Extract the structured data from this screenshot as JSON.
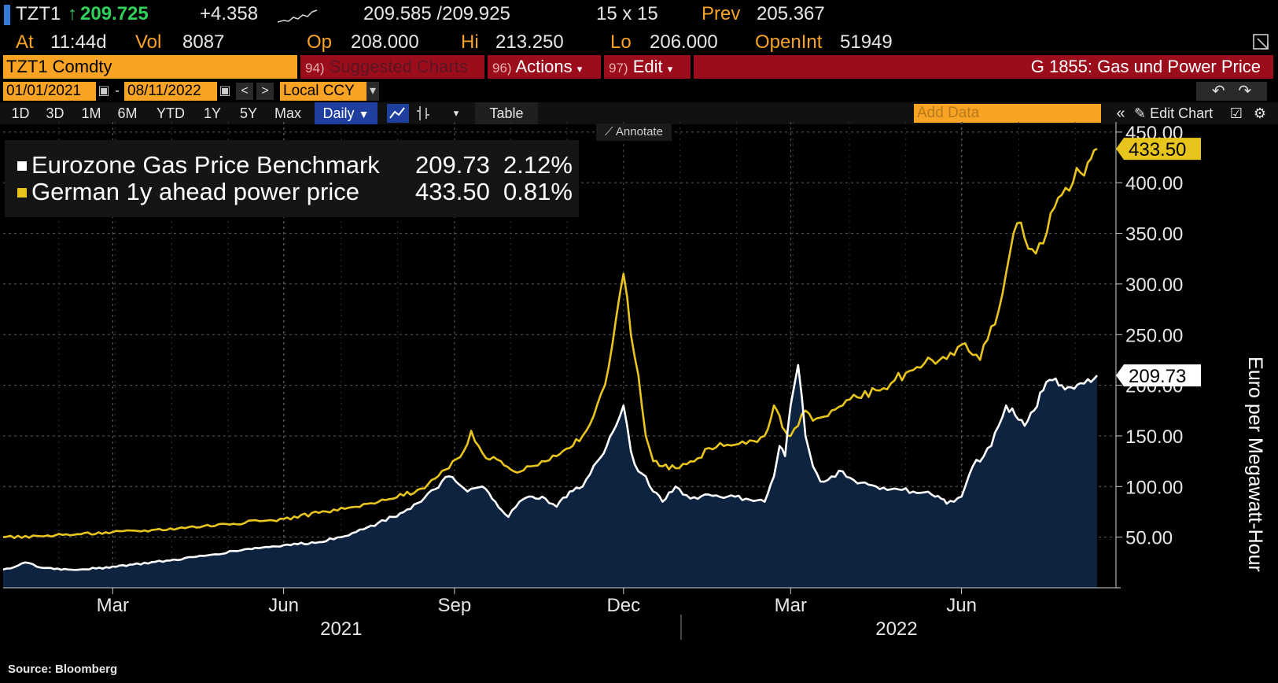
{
  "quote": {
    "ticker": "TZT1",
    "arrow": "↑",
    "last": "209.725",
    "change": "+4.358",
    "bid_ask": "209.585 /209.925",
    "size": "15 x 15",
    "prev_label": "Prev",
    "prev": "205.367",
    "at_label": "At",
    "time": "11:44d",
    "vol_label": "Vol",
    "vol": "8087",
    "open_label": "Op",
    "open": "208.000",
    "hi_label": "Hi",
    "hi": "213.250",
    "lo_label": "Lo",
    "lo": "206.000",
    "oi_label": "OpenInt",
    "oi": "51949"
  },
  "function_bar": {
    "security": "TZT1 Comdty",
    "suggested_num": "94)",
    "suggested": "Suggested Charts",
    "actions_num": "96)",
    "actions": "Actions",
    "edit_num": "97)",
    "edit": "Edit",
    "title": "G 1855: Gas und Power Price"
  },
  "date_bar": {
    "start": "01/01/2021",
    "dash": "-",
    "end": "08/11/2022",
    "currency": "Local CCY"
  },
  "period_bar": {
    "periods": [
      "1D",
      "3D",
      "1M",
      "6M",
      "YTD",
      "1Y",
      "5Y",
      "Max"
    ],
    "frequency": "Daily",
    "table": "Table",
    "add_data_placeholder": "Add Data",
    "edit_chart": "Edit Chart"
  },
  "annotate": "Annotate",
  "source": "Source: Bloomberg",
  "colors": {
    "gas": "#ffffff",
    "power": "#e8c51d",
    "area": "#0e2340",
    "grid": "#5e5e5e"
  },
  "chart_data": {
    "type": "line",
    "title": "G 1855: Gas und Power Price",
    "ylabel": "Euro per Megawatt-Hour",
    "ylim": [
      0,
      460
    ],
    "yticks": [
      "50.00",
      "100.00",
      "150.00",
      "200.00",
      "250.00",
      "300.00",
      "350.00",
      "400.00",
      "450.00"
    ],
    "ytick_values": [
      50,
      100,
      150,
      200,
      250,
      300,
      350,
      400,
      450
    ],
    "xlim_days": [
      0,
      589
    ],
    "month_ticks": [
      {
        "label": "Mar",
        "day": 59
      },
      {
        "label": "Jun",
        "day": 151
      },
      {
        "label": "Sep",
        "day": 243
      },
      {
        "label": "Dec",
        "day": 334
      },
      {
        "label": "Mar",
        "day": 424
      },
      {
        "label": "Jun",
        "day": 516
      }
    ],
    "year_labels": [
      {
        "label": "2021",
        "day": 182
      },
      {
        "label": "2022",
        "day": 481
      }
    ],
    "year_divider_day": 365,
    "legend": [
      {
        "name": "Eurozone Gas Price Benchmark",
        "last": "209.73",
        "pct": "2.12%"
      },
      {
        "name": "German 1y ahead power price",
        "last": "433.50",
        "pct": "0.81%"
      }
    ],
    "series": [
      {
        "name": "Eurozone Gas Price Benchmark",
        "last_label": "209.73",
        "x": [
          0,
          8,
          12,
          20,
          35,
          50,
          59,
          70,
          90,
          110,
          130,
          151,
          170,
          190,
          210,
          225,
          240,
          250,
          258,
          265,
          272,
          278,
          285,
          292,
          298,
          305,
          312,
          320,
          325,
          330,
          334,
          338,
          342,
          346,
          350,
          355,
          362,
          370,
          380,
          390,
          400,
          410,
          415,
          418,
          421,
          424,
          428,
          432,
          436,
          440,
          446,
          452,
          460,
          470,
          480,
          490,
          500,
          505,
          508,
          512,
          516,
          522,
          528,
          532,
          536,
          540,
          545,
          550,
          555,
          560,
          565,
          570,
          575,
          580,
          584,
          589
        ],
        "y": [
          18,
          22,
          25,
          20,
          18,
          19,
          21,
          23,
          27,
          32,
          38,
          42,
          45,
          55,
          70,
          85,
          110,
          95,
          100,
          85,
          70,
          85,
          90,
          88,
          80,
          95,
          100,
          125,
          140,
          160,
          180,
          135,
          115,
          110,
          95,
          85,
          100,
          88,
          92,
          90,
          88,
          85,
          110,
          140,
          130,
          180,
          220,
          150,
          120,
          105,
          110,
          115,
          103,
          100,
          98,
          95,
          92,
          88,
          83,
          85,
          90,
          120,
          130,
          140,
          160,
          180,
          170,
          160,
          175,
          195,
          205,
          200,
          198,
          202,
          206,
          209.73
        ]
      },
      {
        "name": "German 1y ahead power price",
        "last_label": "433.50",
        "x": [
          0,
          20,
          40,
          59,
          80,
          100,
          120,
          140,
          151,
          170,
          190,
          210,
          225,
          240,
          248,
          252,
          256,
          260,
          268,
          275,
          282,
          290,
          298,
          305,
          312,
          318,
          324,
          328,
          332,
          334,
          338,
          342,
          346,
          350,
          355,
          362,
          368,
          374,
          380,
          388,
          396,
          404,
          410,
          415,
          418,
          421,
          424,
          428,
          432,
          436,
          440,
          446,
          452,
          460,
          470,
          480,
          490,
          500,
          510,
          516,
          522,
          526,
          530,
          534,
          538,
          542,
          546,
          550,
          556,
          560,
          564,
          568,
          572,
          576,
          580,
          584,
          589
        ],
        "y": [
          50,
          51,
          53,
          55,
          57,
          60,
          63,
          66,
          68,
          74,
          80,
          88,
          98,
          118,
          135,
          155,
          140,
          128,
          125,
          115,
          120,
          125,
          130,
          138,
          150,
          170,
          200,
          240,
          290,
          310,
          250,
          210,
          150,
          125,
          120,
          118,
          122,
          128,
          138,
          140,
          142,
          145,
          150,
          180,
          170,
          155,
          150,
          160,
          175,
          165,
          168,
          175,
          180,
          188,
          195,
          205,
          215,
          225,
          232,
          240,
          230,
          225,
          245,
          260,
          290,
          330,
          360,
          345,
          330,
          340,
          370,
          385,
          395,
          400,
          410,
          420,
          433.5
        ]
      }
    ]
  }
}
